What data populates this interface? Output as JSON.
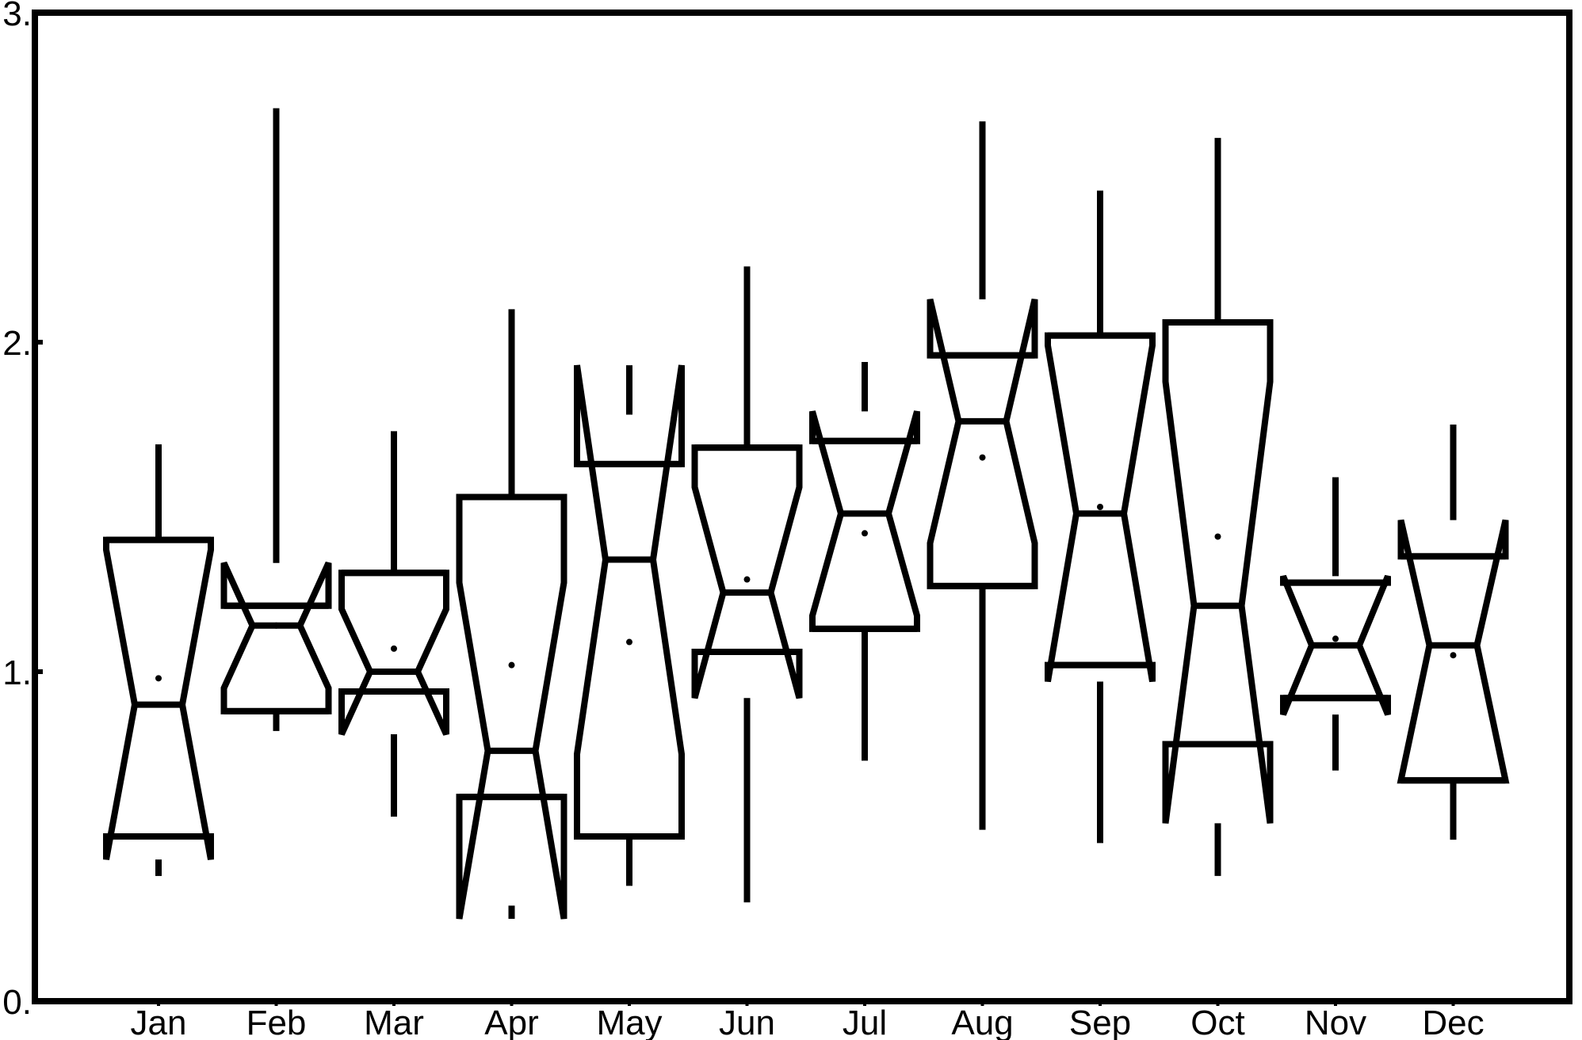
{
  "chart_data": {
    "type": "notched-boxplot",
    "title": "",
    "xlabel": "",
    "ylabel": "",
    "ylim": [
      0,
      3
    ],
    "yticks": [
      {
        "value": 0,
        "label": "0."
      },
      {
        "value": 1,
        "label": "1."
      },
      {
        "value": 2,
        "label": "2."
      },
      {
        "value": 3,
        "label": "3."
      }
    ],
    "categories": [
      "Jan",
      "Feb",
      "Mar",
      "Apr",
      "May",
      "Jun",
      "Jul",
      "Aug",
      "Sep",
      "Oct",
      "Nov",
      "Dec"
    ],
    "boxes": [
      {
        "label": "Jan",
        "whisker_low": 0.38,
        "q1": 0.5,
        "median": 0.9,
        "q3": 1.4,
        "whisker_high": 1.69,
        "notch_low": 0.43,
        "notch_high": 1.37,
        "mean": 0.98
      },
      {
        "label": "Feb",
        "whisker_low": 0.82,
        "q1": 0.88,
        "median": 1.14,
        "q3": 1.2,
        "whisker_high": 2.71,
        "notch_low": 0.95,
        "notch_high": 1.33,
        "mean": 1.14
      },
      {
        "label": "Mar",
        "whisker_low": 0.56,
        "q1": 0.94,
        "median": 1.0,
        "q3": 1.3,
        "whisker_high": 1.73,
        "notch_low": 0.81,
        "notch_high": 1.19,
        "mean": 1.07
      },
      {
        "label": "Apr",
        "whisker_low": 0.29,
        "q1": 0.62,
        "median": 0.76,
        "q3": 1.53,
        "whisker_high": 2.1,
        "notch_low": 0.25,
        "notch_high": 1.27,
        "mean": 1.02
      },
      {
        "label": "May",
        "whisker_low": 0.35,
        "q1": 0.5,
        "median": 1.34,
        "q3": 1.63,
        "whisker_high": 1.78,
        "notch_low": 0.75,
        "notch_high": 1.93,
        "mean": 1.09
      },
      {
        "label": "Jun",
        "whisker_low": 0.3,
        "q1": 1.06,
        "median": 1.24,
        "q3": 1.68,
        "whisker_high": 2.23,
        "notch_low": 0.92,
        "notch_high": 1.56,
        "mean": 1.28
      },
      {
        "label": "Jul",
        "whisker_low": 0.73,
        "q1": 1.13,
        "median": 1.48,
        "q3": 1.7,
        "whisker_high": 1.94,
        "notch_low": 1.17,
        "notch_high": 1.79,
        "mean": 1.42
      },
      {
        "label": "Aug",
        "whisker_low": 0.52,
        "q1": 1.26,
        "median": 1.76,
        "q3": 1.96,
        "whisker_high": 2.67,
        "notch_low": 1.39,
        "notch_high": 2.13,
        "mean": 1.65
      },
      {
        "label": "Sep",
        "whisker_low": 0.48,
        "q1": 1.02,
        "median": 1.48,
        "q3": 2.02,
        "whisker_high": 2.46,
        "notch_low": 0.97,
        "notch_high": 1.99,
        "mean": 1.5
      },
      {
        "label": "Oct",
        "whisker_low": 0.38,
        "q1": 0.78,
        "median": 1.2,
        "q3": 2.06,
        "whisker_high": 2.62,
        "notch_low": 0.54,
        "notch_high": 1.88,
        "mean": 1.41
      },
      {
        "label": "Nov",
        "whisker_low": 0.7,
        "q1": 0.92,
        "median": 1.08,
        "q3": 1.27,
        "whisker_high": 1.59,
        "notch_low": 0.87,
        "notch_high": 1.29,
        "mean": 1.1
      },
      {
        "label": "Dec",
        "whisker_low": 0.49,
        "q1": 0.67,
        "median": 1.08,
        "q3": 1.35,
        "whisker_high": 1.75,
        "notch_low": 0.67,
        "notch_high": 1.46,
        "mean": 1.05
      }
    ],
    "grid": false,
    "legend": "none",
    "colors": {
      "stroke": "#000000",
      "background": "#ffffff"
    }
  }
}
